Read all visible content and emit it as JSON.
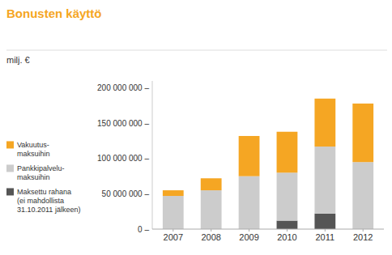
{
  "chart_data": {
    "type": "bar",
    "stacked": true,
    "title": "Bonusten käyttö",
    "y_label": "milj. €",
    "categories": [
      "2007",
      "2008",
      "2009",
      "2010",
      "2011",
      "2012"
    ],
    "series": [
      {
        "name": "Vakuutus-\nmaksuihin",
        "color": "#F5A623",
        "values": [
          8000000,
          17000000,
          57000000,
          58000000,
          68000000,
          83000000
        ]
      },
      {
        "name": "Pankkipalvelu-\nmaksuihin",
        "color": "#CCCCCC",
        "values": [
          47000000,
          55000000,
          75000000,
          68000000,
          95000000,
          95000000
        ]
      },
      {
        "name": "Maksettu rahana\n(ei mahdollista\n31.10.2011 jälkeen)",
        "color": "#555555",
        "values": [
          0,
          0,
          0,
          12000000,
          22000000,
          0
        ]
      }
    ],
    "ylim": [
      0,
      210000000
    ],
    "yticks": [
      {
        "value": 0,
        "label": "0 –"
      },
      {
        "value": 50000000,
        "label": "50 000 000 –"
      },
      {
        "value": 100000000,
        "label": "100 000 000 –"
      },
      {
        "value": 150000000,
        "label": "150 000 000 –"
      },
      {
        "value": 200000000,
        "label": "200 000 000 –"
      }
    ],
    "grid": false,
    "legend": "left"
  }
}
